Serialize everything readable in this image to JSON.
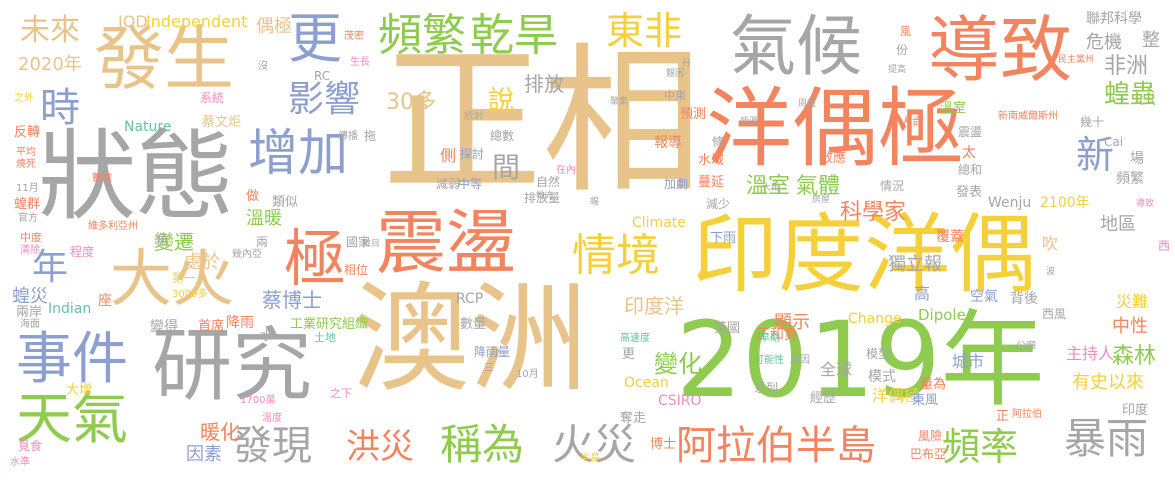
{
  "palette": {
    "tan": "#e8c48a",
    "orange": "#f2845f",
    "yellow": "#f5d03a",
    "green": "#8fcb4f",
    "gray": "#a6a6a6",
    "blue": "#8c9fce",
    "pink": "#ef8dc0",
    "teal": "#66c2a5"
  },
  "words": [
    {
      "text": "正相",
      "color": "tan"
    },
    {
      "text": "澳洲",
      "color": "tan"
    },
    {
      "text": "2019年",
      "color": "green"
    },
    {
      "text": "洋偶極",
      "color": "orange"
    },
    {
      "text": "狀態",
      "color": "gray"
    },
    {
      "text": "印度洋偶",
      "color": "yellow"
    },
    {
      "text": "震盪",
      "color": "orange"
    },
    {
      "text": "研究",
      "color": "gray"
    },
    {
      "text": "導致",
      "color": "orange"
    },
    {
      "text": "氣候",
      "color": "gray"
    },
    {
      "text": "發生",
      "color": "tan"
    },
    {
      "text": "大火",
      "color": "tan"
    },
    {
      "text": "極",
      "color": "orange"
    },
    {
      "text": "事件",
      "color": "blue"
    },
    {
      "text": "天氣",
      "color": "green"
    },
    {
      "text": "增加",
      "color": "blue"
    },
    {
      "text": "頻繁",
      "color": "green"
    },
    {
      "text": "乾旱",
      "color": "green"
    },
    {
      "text": "更",
      "color": "blue"
    },
    {
      "text": "東非",
      "color": "yellow"
    },
    {
      "text": "情境",
      "color": "yellow"
    },
    {
      "text": "阿拉伯半島",
      "color": "orange"
    },
    {
      "text": "稱為",
      "color": "green"
    },
    {
      "text": "火災",
      "color": "gray"
    },
    {
      "text": "洪災",
      "color": "orange"
    },
    {
      "text": "發現",
      "color": "gray"
    },
    {
      "text": "頻率",
      "color": "green"
    },
    {
      "text": "暴雨",
      "color": "gray"
    },
    {
      "text": "影響",
      "color": "blue"
    },
    {
      "text": "時",
      "color": "blue"
    },
    {
      "text": "未來",
      "color": "tan"
    },
    {
      "text": "年",
      "color": "blue"
    },
    {
      "text": "新",
      "color": "blue"
    },
    {
      "text": "蝗蟲",
      "color": "green"
    },
    {
      "text": "非洲",
      "color": "gray"
    },
    {
      "text": "間",
      "color": "gray"
    },
    {
      "text": "說",
      "color": "yellow"
    },
    {
      "text": "30多",
      "color": "tan"
    },
    {
      "text": "排放",
      "color": "gray"
    },
    {
      "text": "2020年",
      "color": "tan"
    },
    {
      "text": "IOD",
      "color": "tan"
    },
    {
      "text": "Independent",
      "color": "yellow"
    },
    {
      "text": "偶極",
      "color": "tan"
    },
    {
      "text": "溫暖",
      "color": "green"
    },
    {
      "text": "溫室",
      "color": "green"
    },
    {
      "text": "氣體",
      "color": "green"
    },
    {
      "text": "科學家",
      "color": "orange"
    },
    {
      "text": "變遷",
      "color": "green"
    },
    {
      "text": "處於",
      "color": "tan"
    },
    {
      "text": "印度洋",
      "color": "tan"
    },
    {
      "text": "獨立報",
      "color": "gray"
    },
    {
      "text": "蔡博士",
      "color": "blue"
    },
    {
      "text": "變化",
      "color": "green"
    },
    {
      "text": "暖化",
      "color": "orange"
    },
    {
      "text": "因素",
      "color": "blue"
    },
    {
      "text": "森林",
      "color": "green"
    },
    {
      "text": "有史以來",
      "color": "yellow"
    },
    {
      "text": "中性",
      "color": "orange"
    },
    {
      "text": "災難",
      "color": "yellow"
    },
    {
      "text": "主持人",
      "color": "pink"
    },
    {
      "text": "城市",
      "color": "blue"
    },
    {
      "text": "洋偶極",
      "color": "yellow"
    },
    {
      "text": "全球",
      "color": "gray"
    },
    {
      "text": "模式",
      "color": "gray"
    },
    {
      "text": "顯示",
      "color": "orange"
    },
    {
      "text": "Ocean",
      "color": "yellow"
    },
    {
      "text": "CSIRO",
      "color": "pink"
    },
    {
      "text": "Dipole",
      "color": "green"
    },
    {
      "text": "Change",
      "color": "yellow"
    },
    {
      "text": "Climate",
      "color": "yellow"
    },
    {
      "text": "Nature",
      "color": "teal"
    },
    {
      "text": "Wenju",
      "color": "gray"
    },
    {
      "text": "2100年",
      "color": "yellow"
    },
    {
      "text": "Indian",
      "color": "teal"
    },
    {
      "text": "RCP",
      "color": "gray"
    },
    {
      "text": "RC",
      "color": "gray"
    },
    {
      "text": "危機",
      "color": "gray"
    },
    {
      "text": "聯邦科學",
      "color": "gray"
    },
    {
      "text": "整",
      "color": "gray"
    },
    {
      "text": "地區",
      "color": "gray"
    },
    {
      "text": "頻繁",
      "color": "gray"
    },
    {
      "text": "場",
      "color": "gray"
    },
    {
      "text": "吹",
      "color": "tan"
    },
    {
      "text": "高",
      "color": "blue"
    },
    {
      "text": "空氣",
      "color": "blue"
    },
    {
      "text": "背後",
      "color": "gray"
    },
    {
      "text": "西風",
      "color": "gray"
    },
    {
      "text": "工業研究組織",
      "color": "green"
    },
    {
      "text": "首席",
      "color": "orange"
    },
    {
      "text": "降雨",
      "color": "orange"
    },
    {
      "text": "變得",
      "color": "gray"
    },
    {
      "text": "蝗災",
      "color": "blue"
    },
    {
      "text": "兩岸",
      "color": "gray"
    },
    {
      "text": "座",
      "color": "orange"
    },
    {
      "text": "角",
      "color": "gray"
    },
    {
      "text": "國家",
      "color": "gray"
    },
    {
      "text": "相位",
      "color": "orange"
    },
    {
      "text": "第一",
      "color": "yellow"
    },
    {
      "text": "3000多",
      "color": "yellow"
    },
    {
      "text": "類似",
      "color": "gray"
    },
    {
      "text": "做",
      "color": "orange"
    },
    {
      "text": "系統",
      "color": "pink"
    },
    {
      "text": "蔡文炬",
      "color": "tan"
    },
    {
      "text": "反轉",
      "color": "orange"
    },
    {
      "text": "蝗群",
      "color": "orange"
    },
    {
      "text": "中度",
      "color": "orange"
    },
    {
      "text": "程度",
      "color": "pink"
    },
    {
      "text": "大增",
      "color": "yellow"
    },
    {
      "text": "覓食",
      "color": "pink"
    },
    {
      "text": "水準",
      "color": "pink"
    },
    {
      "text": "1700萬",
      "color": "pink"
    },
    {
      "text": "溫度",
      "color": "pink"
    },
    {
      "text": "之下",
      "color": "pink"
    },
    {
      "text": "降雨量",
      "color": "blue"
    },
    {
      "text": "土地",
      "color": "teal"
    },
    {
      "text": "數量",
      "color": "gray"
    },
    {
      "text": "水",
      "color": "gray"
    },
    {
      "text": "更",
      "color": "gray"
    },
    {
      "text": "正和負",
      "color": "orange"
    },
    {
      "text": "英國",
      "color": "gray"
    },
    {
      "text": "高速度",
      "color": "teal"
    },
    {
      "text": "早期",
      "color": "teal"
    },
    {
      "text": "可能性",
      "color": "teal"
    },
    {
      "text": "原因",
      "color": "gray"
    },
    {
      "text": "系列",
      "color": "gray"
    },
    {
      "text": "經歷",
      "color": "gray"
    },
    {
      "text": "量為",
      "color": "orange"
    },
    {
      "text": "東風",
      "color": "blue"
    },
    {
      "text": "正",
      "color": "orange"
    },
    {
      "text": "阿拉伯",
      "color": "orange"
    },
    {
      "text": "印度",
      "color": "gray"
    },
    {
      "text": "博士",
      "color": "orange"
    },
    {
      "text": "巴布亞",
      "color": "orange"
    },
    {
      "text": "風險",
      "color": "orange"
    },
    {
      "text": "奪走",
      "color": "gray"
    },
    {
      "text": "模型",
      "color": "gray"
    },
    {
      "text": "公噸",
      "color": "gray"
    },
    {
      "text": "覆蓋",
      "color": "orange"
    },
    {
      "text": "下雨",
      "color": "blue"
    },
    {
      "text": "發表",
      "color": "gray"
    },
    {
      "text": "情況",
      "color": "gray"
    },
    {
      "text": "總和",
      "color": "gray"
    },
    {
      "text": "效應",
      "color": "orange"
    },
    {
      "text": "蔓延",
      "color": "orange"
    },
    {
      "text": "水域",
      "color": "orange"
    },
    {
      "text": "條",
      "color": "gray"
    },
    {
      "text": "太",
      "color": "orange"
    },
    {
      "text": "減少",
      "color": "gray"
    },
    {
      "text": "加劇",
      "color": "blue"
    },
    {
      "text": "中等",
      "color": "blue"
    },
    {
      "text": "探討",
      "color": "blue"
    },
    {
      "text": "總數",
      "color": "gray"
    },
    {
      "text": "側",
      "color": "orange"
    },
    {
      "text": "統計",
      "color": "gray"
    },
    {
      "text": "減弱",
      "color": "gray"
    },
    {
      "text": "排放量",
      "color": "gray"
    },
    {
      "text": "自然",
      "color": "gray"
    },
    {
      "text": "報導",
      "color": "orange"
    },
    {
      "text": "預測",
      "color": "orange"
    },
    {
      "text": "中東",
      "color": "gray"
    },
    {
      "text": "人命",
      "color": "orange"
    },
    {
      "text": "震盪",
      "color": "gray"
    },
    {
      "text": "溫室",
      "color": "green"
    },
    {
      "text": "新南威爾斯州",
      "color": "orange"
    },
    {
      "text": "幾十",
      "color": "gray"
    },
    {
      "text": "Cai",
      "color": "gray"
    },
    {
      "text": "份",
      "color": "gray"
    },
    {
      "text": "風",
      "color": "orange"
    },
    {
      "text": "之外",
      "color": "yellow"
    },
    {
      "text": "平均",
      "color": "orange"
    },
    {
      "text": "燒死",
      "color": "orange"
    },
    {
      "text": "11月",
      "color": "gray"
    },
    {
      "text": "官方",
      "color": "gray"
    },
    {
      "text": "清除",
      "color": "pink"
    },
    {
      "text": "海面",
      "color": "gray"
    },
    {
      "text": "兩",
      "color": "gray"
    },
    {
      "text": "幾內亞",
      "color": "gray"
    },
    {
      "text": "維多利亞州",
      "color": "orange"
    },
    {
      "text": "數據",
      "color": "orange"
    },
    {
      "text": "10月",
      "color": "gray"
    },
    {
      "text": "三",
      "color": "gray"
    },
    {
      "text": "拖",
      "color": "gray"
    },
    {
      "text": "傳播",
      "color": "gray"
    },
    {
      "text": "沒",
      "color": "gray"
    },
    {
      "text": "茂密",
      "color": "orange"
    },
    {
      "text": "生長",
      "color": "pink"
    },
    {
      "text": "民主黨州",
      "color": "orange"
    },
    {
      "text": "西",
      "color": "pink"
    },
    {
      "text": "半島",
      "color": "yellow"
    },
    {
      "text": "導致",
      "color": "pink"
    },
    {
      "text": "在內",
      "color": "pink"
    },
    {
      "text": "大雨",
      "color": "gray"
    },
    {
      "text": "房屋",
      "color": "gray"
    },
    {
      "text": "能源",
      "color": "gray"
    },
    {
      "text": "升",
      "color": "gray"
    },
    {
      "text": "周邊",
      "color": "gray"
    },
    {
      "text": "提高",
      "color": "gray"
    },
    {
      "text": "聚集",
      "color": "gray"
    },
    {
      "text": "地方",
      "color": "gray"
    },
    {
      "text": "蝗",
      "color": "gray"
    },
    {
      "text": "波",
      "color": "gray"
    },
    {
      "text": "艱困",
      "color": "gray"
    },
    {
      "text": "數目",
      "color": "gray"
    }
  ]
}
